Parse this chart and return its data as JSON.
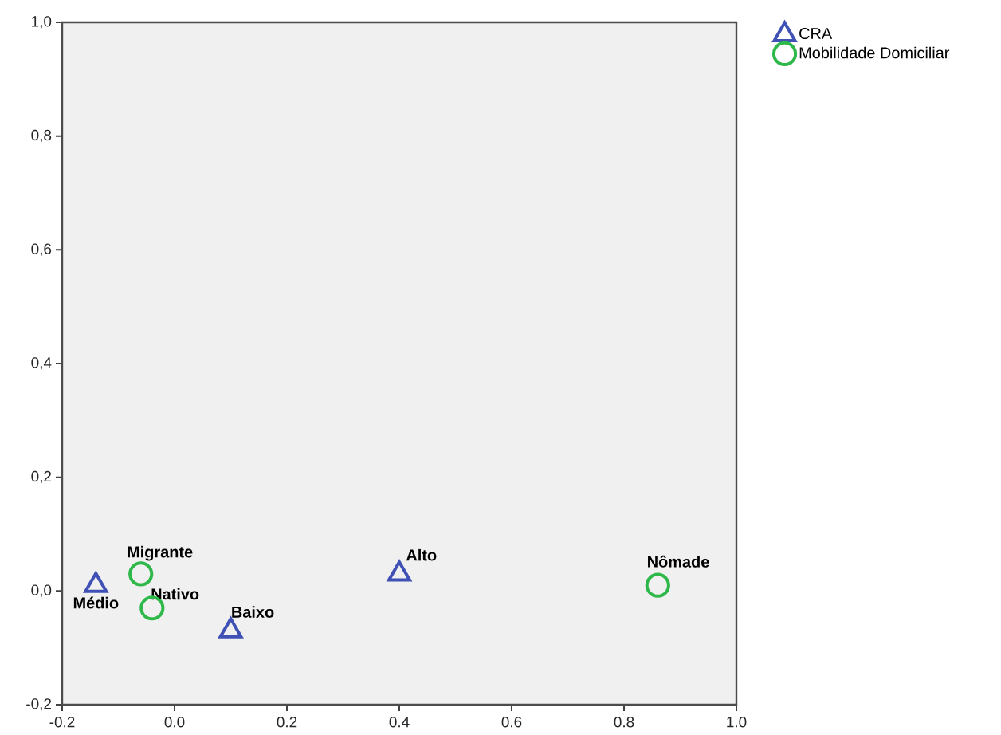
{
  "chart_data": {
    "type": "scatter",
    "series": [
      {
        "name": "CRA",
        "color": "#3f51b5",
        "marker": "triangle",
        "x": [
          -0.14,
          0.1,
          0.4
        ],
        "values": [
          0.01,
          -0.07,
          0.03
        ]
      },
      {
        "name": "Mobilidade Domiciliar",
        "color": "#2eb84a",
        "marker": "circle",
        "x": [
          -0.06,
          -0.04,
          0.86
        ],
        "values": [
          0.03,
          -0.03,
          0.01
        ]
      }
    ],
    "xlim": [
      -0.2,
      1.0
    ],
    "ylim": [
      -0.2,
      1.0
    ],
    "xticks": [
      {
        "value": -0.2,
        "label": "-0.2"
      },
      {
        "value": 0,
        "label": "0.0"
      },
      {
        "value": 0.2,
        "label": "0.2"
      },
      {
        "value": 0.4,
        "label": "0.4"
      },
      {
        "value": 0.6,
        "label": "0.6"
      },
      {
        "value": 0.8,
        "label": "0.8"
      },
      {
        "value": 1.0,
        "label": "1.0"
      }
    ],
    "yticks": [
      {
        "value": -0.2,
        "label": "-0,2"
      },
      {
        "value": 0,
        "label": "0,0"
      },
      {
        "value": 0.2,
        "label": "0,2"
      },
      {
        "value": 0.4,
        "label": "0,4"
      },
      {
        "value": 0.6,
        "label": "0,6"
      },
      {
        "value": 0.8,
        "label": "0,8"
      },
      {
        "value": 1.0,
        "label": "1,0"
      }
    ],
    "annotations": [
      {
        "text": "Migrante",
        "x": -0.06,
        "y": 0.03
      },
      {
        "text": "Médio",
        "x": -0.14,
        "y": 0.01
      },
      {
        "text": "Nativo",
        "x": -0.04,
        "y": -0.03
      },
      {
        "text": "Baixo",
        "x": 0.1,
        "y": -0.07
      },
      {
        "text": "Alto",
        "x": 0.4,
        "y": 0.03
      },
      {
        "text": "Nômade",
        "x": 0.86,
        "y": 0.01
      }
    ],
    "legend": "top right",
    "grid": false
  }
}
